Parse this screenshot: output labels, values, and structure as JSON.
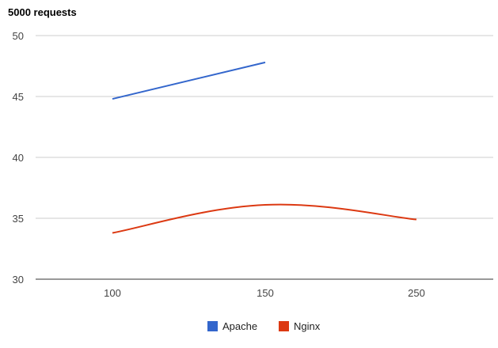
{
  "chart_data": {
    "type": "line",
    "title": "5000 requests",
    "xlabel": "",
    "ylabel": "",
    "categories": [
      "100",
      "150",
      "250"
    ],
    "ylim": [
      30,
      50
    ],
    "yticks": [
      30,
      35,
      40,
      45,
      50
    ],
    "grid": true,
    "legend_position": "bottom",
    "series": [
      {
        "name": "Apache",
        "color": "#3366cc",
        "values": [
          44.8,
          47.8,
          null
        ]
      },
      {
        "name": "Nginx",
        "color": "#dc3912",
        "values": [
          33.8,
          36.1,
          34.9
        ]
      }
    ]
  }
}
